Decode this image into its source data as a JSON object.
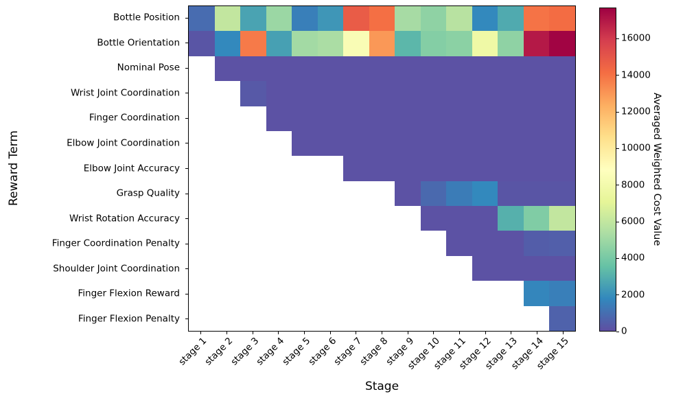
{
  "chart_data": {
    "type": "heatmap",
    "title": "",
    "xlabel": "Stage",
    "ylabel": "Reward Term",
    "colorbar_label": "Averaged Weighted Cost Value",
    "colormap": "Spectral_r",
    "colormap_colors": [
      "#5e4fa2",
      "#3288bd",
      "#66c2a5",
      "#abdda4",
      "#e6f598",
      "#ffffbf",
      "#fee08b",
      "#fdae61",
      "#f46d43",
      "#d53e4f",
      "#9e0142"
    ],
    "vmin": 0,
    "vmax": 17700,
    "missing_color": "#ffffff",
    "colorbar_ticks": [
      0,
      2000,
      4000,
      6000,
      8000,
      10000,
      12000,
      14000,
      16000
    ],
    "x_tick_rotation": 45,
    "x_categories": [
      "stage 1",
      "stage 2",
      "stage 3",
      "stage 4",
      "stage 5",
      "stage 6",
      "stage 7",
      "stage 8",
      "stage 9",
      "stage 10",
      "stage 11",
      "stage 12",
      "stage 13",
      "stage 14",
      "stage 15"
    ],
    "y_categories": [
      "Bottle Position",
      "Bottle Orientation",
      "Nominal Pose",
      "Wrist Joint Coordination",
      "Finger Coordination",
      "Elbow Joint Coordination",
      "Elbow Joint Accuracy",
      "Grasp Quality",
      "Wrist Rotation Accuracy",
      "Finger Coordination Penalty",
      "Shoulder Joint Coordination",
      "Finger Flexion Reward",
      "Finger Flexion Penalty"
    ],
    "values": [
      [
        900,
        6000,
        2600,
        4900,
        1500,
        2200,
        14800,
        14100,
        5200,
        4600,
        5700,
        1800,
        2800,
        14000,
        14200
      ],
      [
        200,
        1800,
        13800,
        2500,
        5100,
        5300,
        8400,
        13000,
        3200,
        4300,
        4500,
        7700,
        4600,
        17000,
        17600
      ],
      [
        null,
        100,
        100,
        100,
        100,
        100,
        100,
        100,
        100,
        100,
        100,
        100,
        100,
        100,
        100
      ],
      [
        null,
        null,
        300,
        100,
        100,
        100,
        100,
        100,
        100,
        100,
        100,
        100,
        100,
        100,
        100
      ],
      [
        null,
        null,
        null,
        100,
        100,
        100,
        100,
        100,
        100,
        100,
        100,
        100,
        100,
        100,
        100
      ],
      [
        null,
        null,
        null,
        null,
        100,
        100,
        100,
        100,
        100,
        100,
        100,
        100,
        100,
        100,
        100
      ],
      [
        null,
        null,
        null,
        null,
        null,
        null,
        100,
        100,
        100,
        100,
        100,
        100,
        100,
        100,
        100
      ],
      [
        null,
        null,
        null,
        null,
        null,
        null,
        null,
        null,
        100,
        800,
        1400,
        1800,
        200,
        200,
        200
      ],
      [
        null,
        null,
        null,
        null,
        null,
        null,
        null,
        null,
        null,
        100,
        100,
        100,
        3000,
        4200,
        6000
      ],
      [
        null,
        null,
        null,
        null,
        null,
        null,
        null,
        null,
        null,
        null,
        100,
        100,
        100,
        450,
        500
      ],
      [
        null,
        null,
        null,
        null,
        null,
        null,
        null,
        null,
        null,
        null,
        null,
        100,
        100,
        100,
        100
      ],
      [
        null,
        null,
        null,
        null,
        null,
        null,
        null,
        null,
        null,
        null,
        null,
        null,
        null,
        1700,
        1500
      ],
      [
        null,
        null,
        null,
        null,
        null,
        null,
        null,
        null,
        null,
        null,
        null,
        null,
        null,
        null,
        600
      ]
    ]
  }
}
